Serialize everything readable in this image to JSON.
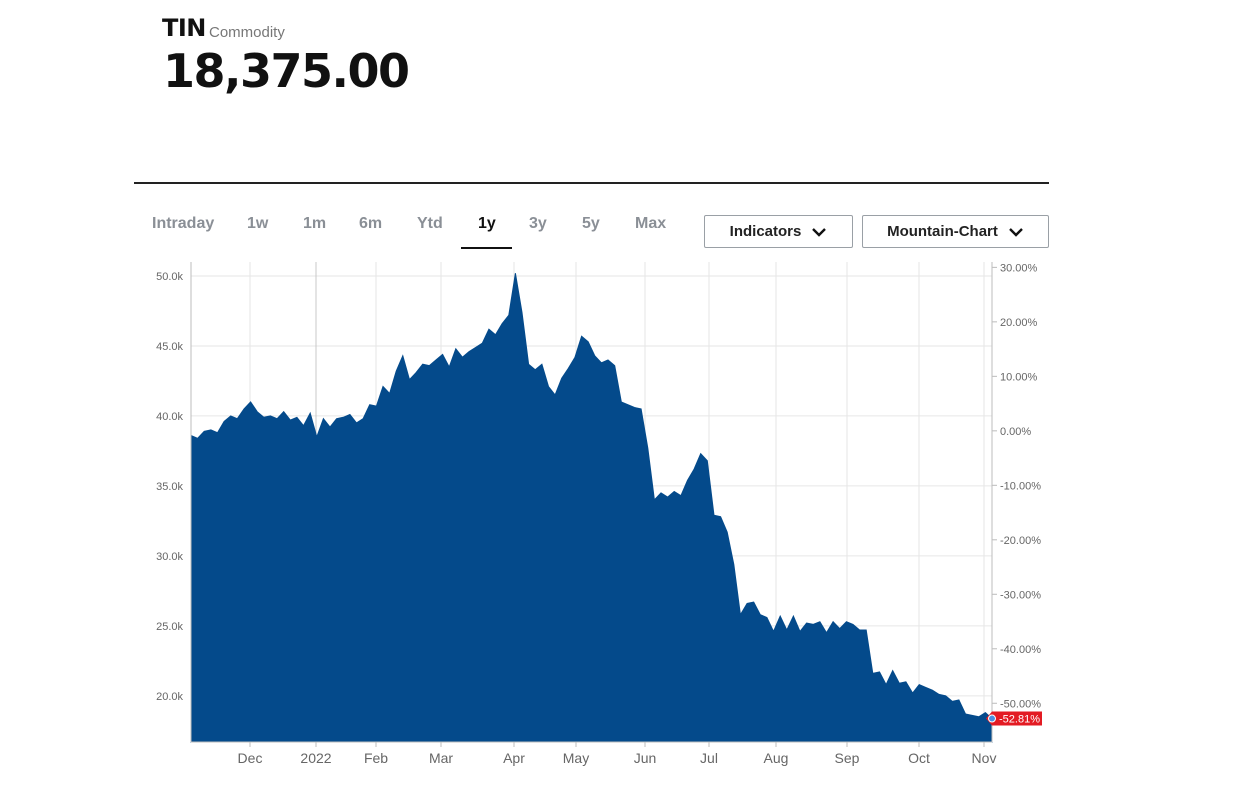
{
  "header": {
    "symbol": "TIN",
    "type": "Commodity",
    "price": "18,375.00"
  },
  "tabs": [
    {
      "label": "Intraday",
      "active": false
    },
    {
      "label": "1w",
      "active": false
    },
    {
      "label": "1m",
      "active": false
    },
    {
      "label": "6m",
      "active": false
    },
    {
      "label": "Ytd",
      "active": false
    },
    {
      "label": "1y",
      "active": true
    },
    {
      "label": "3y",
      "active": false
    },
    {
      "label": "5y",
      "active": false
    },
    {
      "label": "Max",
      "active": false
    }
  ],
  "controls": {
    "indicators_label": "Indicators",
    "chart_type_label": "Mountain-Chart"
  },
  "colors": {
    "area_fill": "#044a8b",
    "badge": "#e31b23"
  },
  "chart_data": {
    "type": "area",
    "series": [
      {
        "values": [
          38600,
          38400,
          38900,
          39000,
          38800,
          39600,
          40000,
          39800,
          40500,
          41000,
          40300,
          39900,
          40000,
          39800,
          40300,
          39700,
          39900,
          39300,
          40200,
          38500,
          39800,
          39200,
          39800,
          39900,
          40100,
          39500,
          39800,
          40800,
          40700,
          42100,
          41600,
          43200,
          44300,
          42600,
          43100,
          43700,
          43600,
          44000,
          44400,
          43500,
          44800,
          44200,
          44600,
          44900,
          45200,
          46200,
          45800,
          46600,
          47200,
          50200,
          47400,
          43700,
          43300,
          43700,
          42100,
          41500,
          42700,
          43400,
          44200,
          45700,
          45300,
          44300,
          43800,
          44000,
          43600,
          41000,
          40800,
          40600,
          40500,
          37700,
          34000,
          34500,
          34200,
          34600,
          34300,
          35400,
          36200,
          37300,
          36800,
          32900,
          32800,
          31700,
          29400,
          25800,
          26600,
          26700,
          25800,
          25600,
          24600,
          25700,
          24700,
          25700,
          24600,
          25200,
          25100,
          25300,
          24500,
          25300,
          24800,
          25300,
          25100,
          24700,
          24700,
          21600,
          21700,
          20800,
          21800,
          20900,
          21000,
          20200,
          20800,
          20600,
          20400,
          20100,
          20000,
          19600,
          19700,
          18700,
          18600,
          18500,
          18800,
          18375
        ],
        "end_change_label": "-52.81%"
      }
    ],
    "x_tick_labels": [
      "Dec",
      "2022",
      "Feb",
      "Mar",
      "Apr",
      "May",
      "Jun",
      "Jul",
      "Aug",
      "Sep",
      "Oct",
      "Nov"
    ],
    "y_left": {
      "ticks": [
        20000,
        25000,
        30000,
        35000,
        40000,
        45000,
        50000
      ],
      "tick_labels": [
        "20.0k",
        "25.0k",
        "30.0k",
        "35.0k",
        "40.0k",
        "45.0k",
        "50.0k"
      ],
      "range": [
        16700,
        51000
      ]
    },
    "y_right": {
      "ticks": [
        30,
        20,
        10,
        0,
        -10,
        -20,
        -30,
        -40,
        -50
      ],
      "tick_labels": [
        "30.00%",
        "20.00%",
        "10.00%",
        "0.00%",
        "-10.00%",
        "-20.00%",
        "-30.00%",
        "-40.00%",
        "-50.00%"
      ],
      "base_value": 38936
    },
    "grid": true
  }
}
